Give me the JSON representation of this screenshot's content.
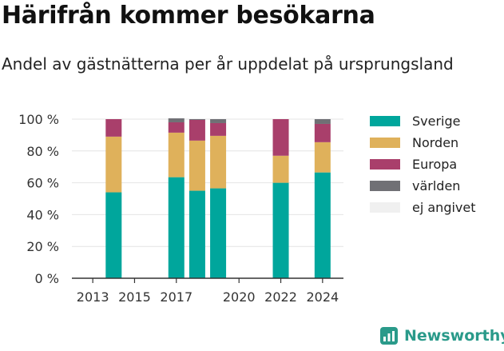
{
  "header": {
    "title": "Härifrån kommer besökarna",
    "subtitle": "Andel av gästnätterna per år uppdelat på ursprungsland"
  },
  "brand": {
    "name": "Newsworthy",
    "icon": "newsworthy-chart-logo-icon",
    "color": "#2a9a8a"
  },
  "chart_data": {
    "type": "bar",
    "stacked": true,
    "x": [
      2014,
      2017,
      2018,
      2019,
      2022,
      2024
    ],
    "x_ticks": [
      2013,
      2015,
      2017,
      2020,
      2022,
      2024
    ],
    "xlim": [
      2012,
      2025
    ],
    "ylim": [
      0,
      100
    ],
    "y_ticks": [
      0,
      20,
      40,
      60,
      80,
      100
    ],
    "y_tick_suffix": " %",
    "grid": "horizontal",
    "legend_position": "right",
    "series": [
      {
        "name": "Sverige",
        "color": "#00a69c",
        "values": [
          54,
          63.5,
          55,
          56.5,
          60,
          66.5
        ]
      },
      {
        "name": "Norden",
        "color": "#dfb15b",
        "values": [
          35,
          28,
          31.5,
          33,
          17,
          19
        ]
      },
      {
        "name": "Europa",
        "color": "#a93f6b",
        "values": [
          11,
          6.5,
          13,
          8,
          23,
          11.5
        ]
      },
      {
        "name": "världen",
        "color": "#707075",
        "values": [
          0,
          2.5,
          0.5,
          2.5,
          0,
          3
        ]
      },
      {
        "name": "ej angivet",
        "color": "#f0f0f0",
        "values": [
          0,
          0,
          0,
          0,
          0,
          0
        ]
      }
    ]
  }
}
